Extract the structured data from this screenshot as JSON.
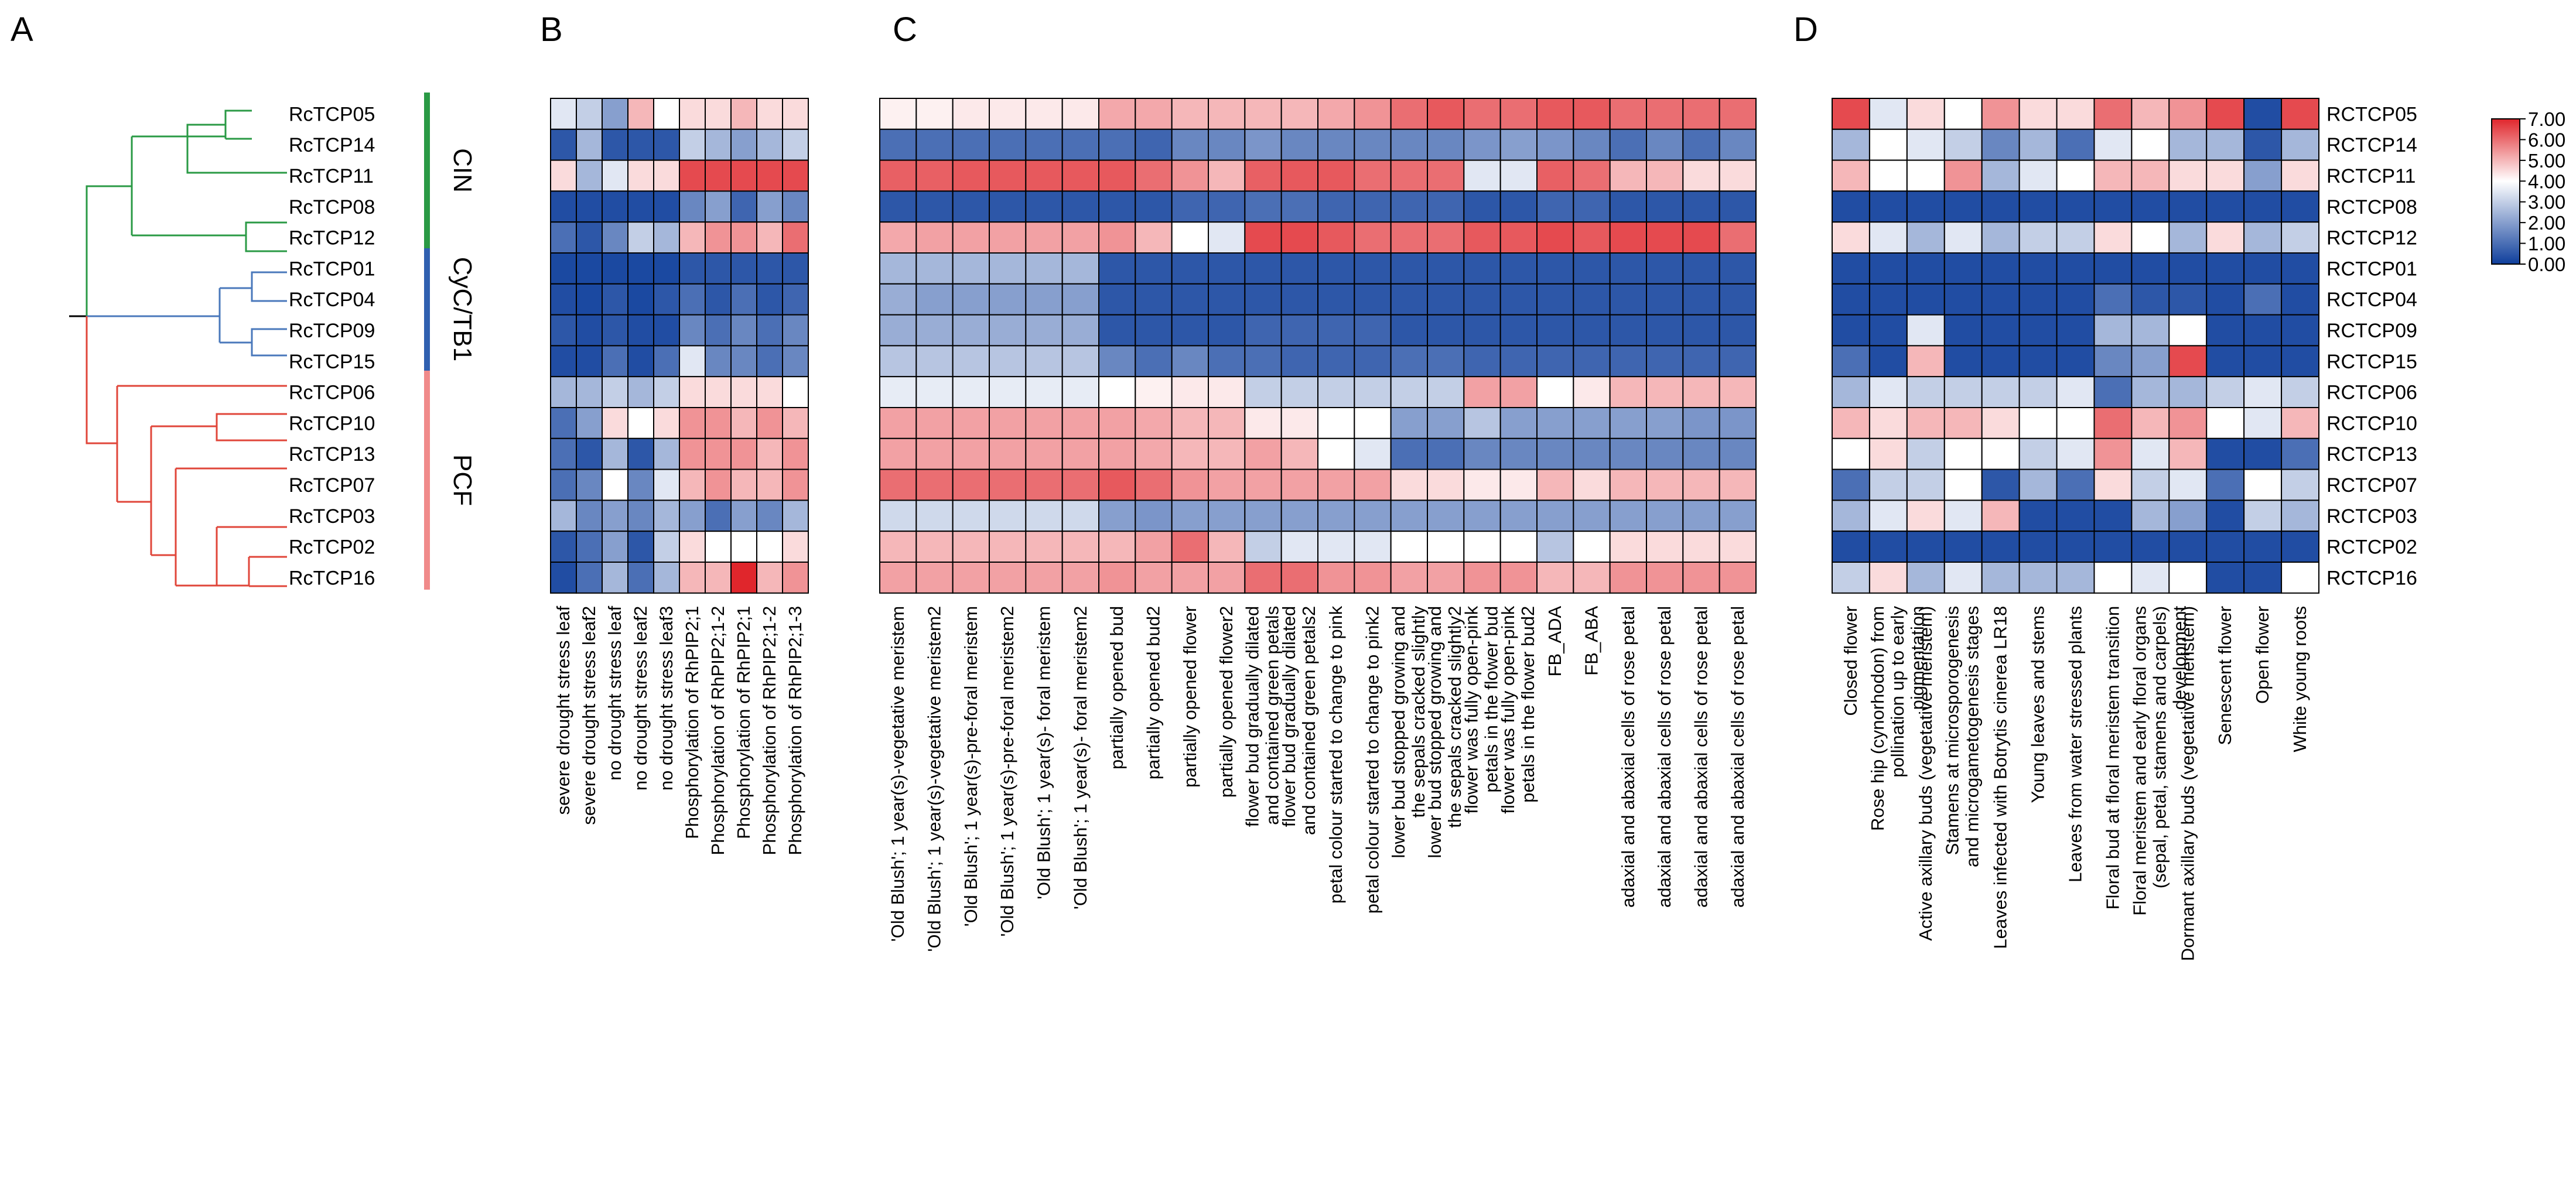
{
  "panel_labels": [
    "A",
    "B",
    "C",
    "D"
  ],
  "colors": {
    "low": "#0f3f9c",
    "mid": "#ffffff",
    "high": "#e0262c",
    "cin_branch": "#2a9a45",
    "cyc_branch": "#4a78bb",
    "pcf_branch": "#e0463a",
    "pcf_bar": "#f08a8a"
  },
  "chart_data": [
    {
      "type": "tree",
      "panel": "A",
      "leaves": [
        "RcTCP05",
        "RcTCP14",
        "RcTCP11",
        "RcTCP08",
        "RcTCP12",
        "RcTCP01",
        "RcTCP04",
        "RcTCP09",
        "RcTCP15",
        "RcTCP06",
        "RcTCP10",
        "RcTCP13",
        "RcTCP07",
        "RcTCP03",
        "RcTCP02",
        "RcTCP16"
      ],
      "clades": [
        {
          "name": "CIN",
          "members": [
            "RcTCP05",
            "RcTCP14",
            "RcTCP11",
            "RcTCP08",
            "RcTCP12"
          ]
        },
        {
          "name": "CyC/TB1",
          "members": [
            "RcTCP01",
            "RcTCP04",
            "RcTCP09",
            "RcTCP15"
          ]
        },
        {
          "name": "PCF",
          "members": [
            "RcTCP06",
            "RcTCP10",
            "RcTCP13",
            "RcTCP07",
            "RcTCP03",
            "RcTCP02",
            "RcTCP16"
          ]
        }
      ]
    },
    {
      "type": "heatmap",
      "panel": "B",
      "rows": [
        "RcTCP05",
        "RcTCP14",
        "RcTCP11",
        "RcTCP08",
        "RcTCP12",
        "RcTCP01",
        "RcTCP04",
        "RcTCP09",
        "RcTCP15",
        "RcTCP06",
        "RcTCP10",
        "RcTCP13",
        "RcTCP07",
        "RcTCP03",
        "RcTCP02",
        "RcTCP16"
      ],
      "columns": [
        "severe drought stress leaf",
        "severe drought stress leaf2",
        "no drought stress leaf",
        "no drought stress leaf2",
        "no drought stress leaf3",
        "Phosphorylation of RhPIP2;1",
        "Phosphorylation of RhPIP2;1-2",
        "Phosphorylation of RhPIP2;1",
        "Phosphorylation of RhPIP2;1-2",
        "Phosphorylation of RhPIP2;1-3"
      ],
      "values": [
        [
          3.5,
          3.0,
          2.0,
          5.0,
          4.0,
          4.5,
          4.5,
          5.0,
          4.5,
          4.5
        ],
        [
          0.5,
          2.5,
          0.5,
          0.5,
          0.5,
          3.0,
          2.5,
          2.0,
          2.5,
          3.0
        ],
        [
          4.5,
          2.5,
          3.5,
          4.5,
          4.5,
          6.5,
          6.5,
          6.5,
          6.5,
          6.5
        ],
        [
          0.3,
          0.3,
          0.3,
          0.3,
          0.3,
          1.5,
          2.0,
          0.8,
          2.0,
          1.5
        ],
        [
          1.0,
          0.5,
          1.5,
          3.0,
          2.5,
          5.0,
          5.5,
          5.5,
          5.0,
          6.0
        ],
        [
          0.2,
          0.2,
          0.2,
          0.2,
          0.2,
          0.5,
          0.5,
          0.5,
          0.5,
          0.5
        ],
        [
          0.3,
          0.2,
          0.5,
          0.2,
          0.5,
          1.0,
          0.5,
          1.0,
          0.5,
          0.8
        ],
        [
          0.5,
          0.3,
          0.5,
          0.3,
          0.3,
          1.5,
          1.0,
          1.5,
          1.0,
          1.5
        ],
        [
          0.3,
          0.3,
          1.0,
          0.3,
          1.0,
          3.5,
          1.5,
          1.5,
          1.0,
          1.5
        ],
        [
          2.5,
          2.5,
          3.0,
          2.5,
          3.0,
          4.5,
          4.5,
          4.5,
          4.5,
          4.0
        ],
        [
          1.0,
          2.0,
          4.5,
          4.0,
          4.5,
          5.5,
          5.5,
          5.0,
          5.5,
          5.0
        ],
        [
          1.0,
          0.5,
          2.5,
          0.5,
          2.5,
          5.5,
          5.5,
          5.5,
          5.0,
          5.5
        ],
        [
          1.0,
          1.5,
          4.0,
          1.5,
          3.5,
          5.0,
          5.5,
          5.0,
          5.0,
          5.5
        ],
        [
          2.5,
          1.5,
          2.0,
          1.5,
          2.5,
          2.0,
          1.0,
          2.0,
          1.5,
          2.5
        ],
        [
          0.5,
          1.0,
          2.0,
          0.5,
          3.0,
          4.5,
          4.0,
          4.0,
          4.0,
          4.5
        ],
        [
          0.3,
          1.0,
          2.5,
          1.0,
          2.5,
          5.0,
          5.0,
          7.0,
          5.0,
          5.5
        ]
      ]
    },
    {
      "type": "heatmap",
      "panel": "C",
      "rows": [
        "RcTCP05",
        "RcTCP14",
        "RcTCP11",
        "RcTCP08",
        "RcTCP12",
        "RcTCP01",
        "RcTCP04",
        "RcTCP09",
        "RcTCP15",
        "RcTCP06",
        "RcTCP10",
        "RcTCP13",
        "RcTCP07",
        "RcTCP03",
        "RcTCP02",
        "RcTCP16"
      ],
      "columns": [
        "'Old Blush';  1 year(s)-vegetative meristem",
        "'Old Blush';  1 year(s)-vegetative meristem2",
        "'Old Blush';  1 year(s)-pre-foral meristem",
        "'Old Blush';  1 year(s)-pre-foral meristem2",
        "'Old Blush';  1 year(s)- foral meristem",
        "'Old Blush';  1 year(s)- foral meristem2",
        "partially opened bud",
        "partially opened bud2",
        "partially opened flower",
        "partially opened flower2",
        "flower bud gradually dilated and contained green petals",
        "flower bud gradually dilated and contained green petals2",
        "petal colour started to change to pink",
        "petal colour started to change to pink2",
        "lower bud stopped growing and the sepals cracked slightly",
        "lower bud stopped growing and the sepals cracked slightly2",
        "flower was fully open-pink petals in the flower bud",
        "flower was fully open-pink petals in the flower bud2",
        "FB_ADA",
        "FB_ABA",
        "adaxial and abaxial cells of rose petal",
        "adaxial and abaxial cells of rose petal",
        "adaxial and abaxial cells of rose petal",
        "adaxial and abaxial cells of rose petal"
      ],
      "values": [
        [
          4.2,
          4.2,
          4.3,
          4.3,
          4.3,
          4.3,
          5.2,
          5.2,
          5.0,
          5.0,
          5.0,
          5.0,
          5.2,
          5.5,
          6.0,
          6.3,
          6.0,
          6.0,
          6.3,
          6.3,
          6.0,
          6.0,
          6.0,
          6.0
        ],
        [
          1.0,
          1.0,
          1.0,
          1.0,
          1.0,
          1.0,
          1.0,
          0.8,
          1.5,
          1.5,
          1.8,
          1.5,
          1.5,
          1.5,
          1.5,
          1.5,
          1.8,
          2.0,
          1.8,
          1.5,
          1.0,
          1.5,
          1.0,
          1.5
        ],
        [
          6.2,
          6.2,
          6.3,
          6.3,
          6.3,
          6.3,
          6.3,
          6.0,
          5.5,
          5.0,
          6.2,
          6.3,
          6.3,
          6.0,
          6.0,
          6.0,
          3.5,
          3.5,
          6.2,
          6.0,
          5.0,
          5.0,
          4.5,
          4.5
        ],
        [
          0.5,
          0.5,
          0.5,
          0.5,
          0.5,
          0.5,
          0.5,
          0.5,
          0.8,
          0.8,
          1.0,
          1.0,
          0.8,
          0.8,
          0.8,
          0.8,
          0.5,
          0.5,
          0.8,
          0.8,
          0.5,
          0.5,
          0.5,
          0.5
        ],
        [
          5.2,
          5.3,
          5.3,
          5.3,
          5.3,
          5.3,
          5.5,
          5.0,
          4.0,
          3.5,
          6.5,
          6.5,
          6.3,
          6.0,
          6.0,
          6.0,
          6.3,
          6.3,
          6.5,
          6.3,
          6.5,
          6.5,
          6.5,
          6.0
        ],
        [
          2.5,
          2.5,
          2.5,
          2.5,
          2.5,
          2.5,
          0.5,
          0.5,
          0.5,
          0.5,
          0.5,
          0.5,
          0.5,
          0.5,
          0.5,
          0.5,
          0.5,
          0.5,
          0.5,
          0.5,
          0.5,
          0.5,
          0.5,
          0.5
        ],
        [
          2.3,
          2.0,
          2.0,
          2.0,
          2.0,
          2.0,
          0.5,
          0.5,
          0.5,
          0.5,
          0.5,
          0.5,
          0.5,
          0.5,
          0.5,
          0.5,
          0.5,
          0.5,
          0.5,
          0.5,
          0.5,
          0.5,
          0.5,
          0.5
        ],
        [
          2.3,
          2.3,
          2.3,
          2.3,
          2.3,
          2.3,
          0.5,
          0.5,
          0.5,
          0.5,
          0.8,
          0.8,
          0.8,
          0.8,
          0.5,
          0.5,
          0.5,
          0.5,
          0.5,
          0.5,
          0.5,
          0.5,
          0.5,
          0.5
        ],
        [
          2.8,
          2.8,
          2.8,
          2.8,
          2.8,
          2.8,
          1.5,
          1.0,
          1.5,
          1.0,
          1.0,
          0.8,
          0.8,
          0.8,
          1.0,
          1.0,
          0.8,
          0.8,
          0.8,
          0.8,
          0.8,
          0.8,
          0.8,
          0.8
        ],
        [
          3.6,
          3.6,
          3.6,
          3.6,
          3.6,
          3.6,
          4.0,
          4.2,
          4.3,
          4.3,
          3.0,
          3.0,
          3.0,
          3.0,
          3.0,
          3.0,
          5.3,
          5.3,
          4.0,
          4.3,
          5.0,
          5.0,
          5.0,
          5.0
        ],
        [
          5.3,
          5.3,
          5.3,
          5.3,
          5.3,
          5.3,
          5.3,
          5.2,
          5.0,
          5.0,
          4.3,
          4.3,
          4.0,
          4.0,
          2.0,
          2.0,
          2.8,
          2.0,
          2.0,
          2.0,
          2.0,
          2.0,
          1.8,
          1.8
        ],
        [
          5.3,
          5.3,
          5.3,
          5.3,
          5.3,
          5.3,
          5.3,
          5.2,
          5.0,
          5.0,
          5.3,
          5.0,
          4.0,
          3.5,
          1.0,
          1.0,
          1.5,
          1.5,
          1.5,
          1.5,
          1.5,
          1.5,
          1.5,
          1.5
        ],
        [
          6.0,
          6.0,
          6.0,
          6.0,
          6.0,
          6.0,
          6.3,
          6.0,
          5.5,
          5.3,
          5.3,
          5.3,
          5.3,
          5.3,
          4.5,
          4.5,
          4.3,
          4.3,
          5.0,
          4.5,
          5.0,
          5.0,
          5.0,
          5.0
        ],
        [
          3.2,
          3.2,
          3.2,
          3.2,
          3.2,
          3.2,
          2.0,
          1.8,
          2.0,
          2.0,
          2.0,
          2.0,
          2.0,
          2.0,
          2.0,
          2.0,
          2.0,
          2.0,
          2.0,
          2.0,
          2.0,
          2.0,
          2.0,
          2.0
        ],
        [
          5.0,
          5.0,
          5.0,
          5.0,
          5.0,
          5.0,
          5.0,
          5.3,
          6.0,
          5.0,
          3.0,
          3.5,
          3.5,
          3.5,
          4.0,
          4.0,
          4.0,
          4.0,
          2.8,
          4.0,
          4.5,
          4.5,
          4.5,
          4.5
        ],
        [
          5.3,
          5.3,
          5.3,
          5.3,
          5.3,
          5.3,
          5.5,
          5.3,
          5.3,
          5.3,
          6.0,
          6.0,
          5.5,
          5.5,
          5.3,
          5.3,
          5.5,
          5.5,
          5.0,
          5.0,
          5.5,
          5.5,
          5.5,
          5.5
        ]
      ]
    },
    {
      "type": "heatmap",
      "panel": "D",
      "rows": [
        "RCTCP05",
        "RCTCP14",
        "RCTCP11",
        "RCTCP08",
        "RCTCP12",
        "RCTCP01",
        "RCTCP04",
        "RCTCP09",
        "RCTCP15",
        "RCTCP06",
        "RCTCP10",
        "RCTCP13",
        "RCTCP07",
        "RCTCP03",
        "RCTCP02",
        "RCTCP16"
      ],
      "columns": [
        "Closed flower",
        "Rose hip (cynorhodon) from pollination up to early pigmentation",
        "Active axillary buds (vegetative meristem)",
        "Stamens at microsporogenesis and microgametogenesis stages",
        "Leaves infected with Botrytis cinerea LR18",
        "Young leaves and stems",
        "Leaves from water stressed plants",
        "Floral bud at floral meristem transition",
        "Floral meristem and early floral organs (sepal, petal, stamens and carpels) development",
        "Dormant axillary buds (vegetative meristem)",
        "Senescent flower",
        "Open flower",
        "White young roots"
      ],
      "values": [
        [
          6.5,
          3.5,
          4.5,
          4.0,
          5.5,
          4.5,
          4.5,
          6.0,
          5.0,
          5.5,
          6.5,
          0.3,
          6.5
        ],
        [
          2.5,
          4.0,
          3.5,
          3.0,
          1.5,
          2.5,
          1.0,
          3.5,
          4.0,
          2.5,
          2.5,
          0.5,
          2.5
        ],
        [
          5.0,
          4.0,
          4.0,
          5.5,
          2.5,
          3.5,
          4.0,
          5.0,
          5.0,
          4.5,
          4.5,
          2.0,
          4.5
        ],
        [
          0.3,
          0.3,
          0.3,
          0.3,
          0.3,
          0.3,
          0.3,
          0.3,
          0.3,
          0.3,
          0.3,
          0.3,
          0.3
        ],
        [
          4.5,
          3.5,
          2.5,
          3.5,
          2.5,
          3.0,
          3.0,
          4.5,
          4.0,
          2.5,
          4.5,
          2.5,
          3.0
        ],
        [
          0.3,
          0.3,
          0.3,
          0.3,
          0.3,
          0.3,
          0.3,
          0.3,
          0.3,
          0.3,
          0.3,
          0.3,
          0.3
        ],
        [
          0.3,
          0.3,
          0.3,
          0.3,
          0.3,
          0.3,
          0.3,
          1.0,
          0.5,
          0.5,
          0.3,
          1.0,
          0.3
        ],
        [
          0.3,
          0.3,
          3.5,
          0.3,
          0.3,
          0.3,
          0.3,
          2.5,
          2.5,
          4.0,
          0.3,
          0.3,
          0.3
        ],
        [
          1.0,
          0.3,
          5.0,
          0.3,
          0.3,
          0.3,
          0.3,
          1.5,
          2.0,
          6.5,
          0.3,
          0.3,
          0.3
        ],
        [
          2.5,
          3.5,
          3.0,
          3.0,
          3.0,
          3.0,
          3.5,
          1.0,
          2.5,
          2.5,
          3.0,
          3.5,
          3.0
        ],
        [
          5.0,
          4.5,
          5.0,
          5.0,
          4.5,
          4.0,
          4.0,
          6.0,
          5.0,
          5.5,
          4.0,
          3.5,
          5.0
        ],
        [
          4.0,
          4.5,
          3.0,
          4.0,
          4.0,
          3.0,
          3.5,
          5.5,
          3.5,
          5.0,
          0.3,
          0.3,
          1.0
        ],
        [
          1.0,
          3.0,
          3.0,
          4.0,
          0.5,
          2.5,
          1.0,
          4.5,
          3.0,
          3.5,
          1.0,
          4.0,
          3.0
        ],
        [
          2.5,
          3.5,
          4.5,
          3.5,
          5.0,
          0.3,
          0.3,
          0.3,
          2.5,
          2.0,
          0.3,
          3.0,
          2.5
        ],
        [
          0.3,
          0.3,
          0.3,
          0.3,
          0.3,
          0.3,
          0.3,
          0.3,
          0.3,
          0.3,
          0.3,
          0.3,
          0.3
        ],
        [
          3.0,
          4.5,
          2.5,
          3.5,
          2.5,
          2.5,
          2.5,
          4.0,
          3.5,
          4.0,
          0.3,
          0.3,
          4.0
        ]
      ]
    }
  ],
  "legend": {
    "title": "",
    "ticks": [
      "7.00",
      "6.00",
      "5.00",
      "4.00",
      "3.00",
      "2.00",
      "1.00",
      "0.00"
    ],
    "range": [
      0,
      7
    ]
  }
}
